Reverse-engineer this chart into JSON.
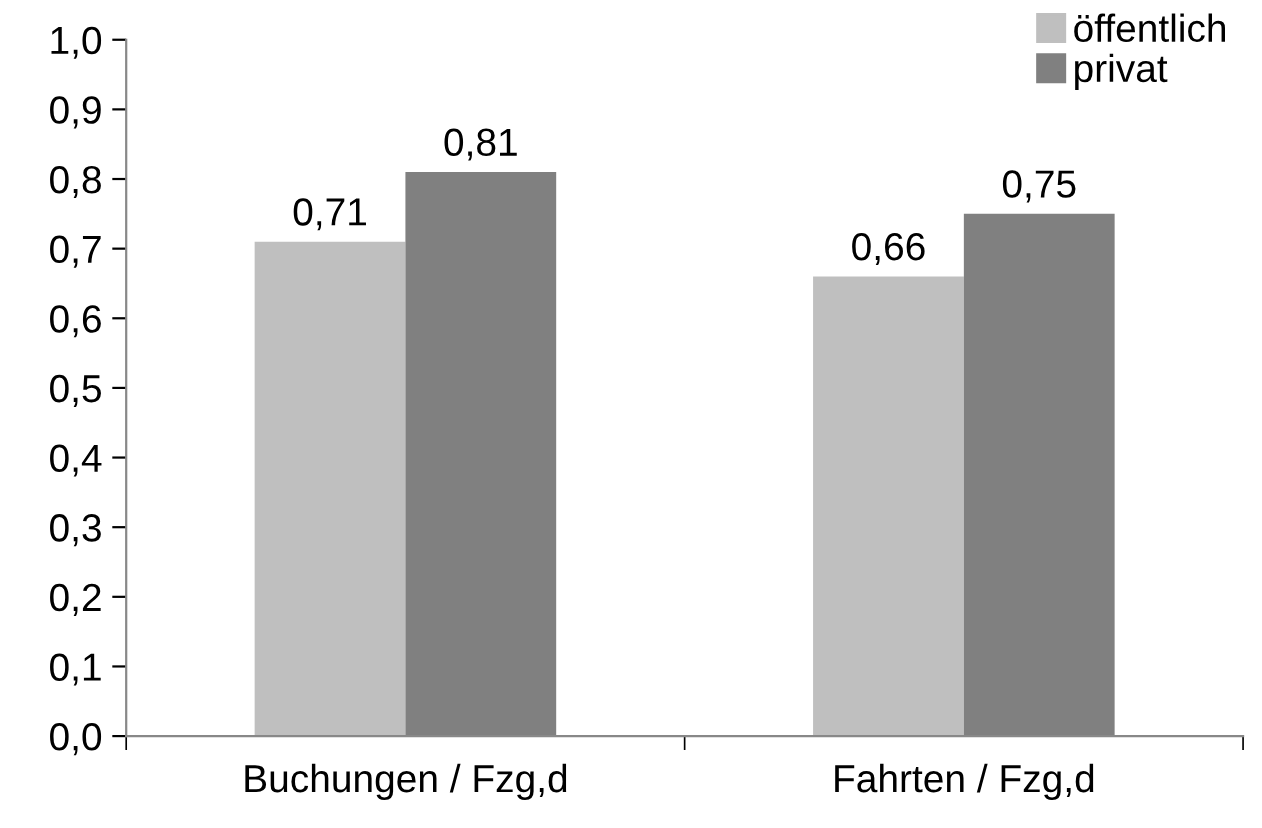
{
  "chart_data": {
    "type": "bar",
    "categories": [
      "Buchungen / Fzg,d",
      "Fahrten / Fzg,d"
    ],
    "series": [
      {
        "name": "öffentlich",
        "color": "#bfbfbf",
        "values": [
          0.71,
          0.66
        ],
        "value_labels": [
          "0,71",
          "0,66"
        ]
      },
      {
        "name": "privat",
        "color": "#808080",
        "values": [
          0.81,
          0.75
        ],
        "value_labels": [
          "0,81",
          "0,75"
        ]
      }
    ],
    "ylim": [
      0,
      1
    ],
    "yticks": [
      {
        "value": 0,
        "label": "0,0"
      },
      {
        "value": 0.1,
        "label": "0,1"
      },
      {
        "value": 0.2,
        "label": "0,2"
      },
      {
        "value": 0.3,
        "label": "0,3"
      },
      {
        "value": 0.4,
        "label": "0,4"
      },
      {
        "value": 0.5,
        "label": "0,5"
      },
      {
        "value": 0.6,
        "label": "0,6"
      },
      {
        "value": 0.7,
        "label": "0,7"
      },
      {
        "value": 0.8,
        "label": "0,8"
      },
      {
        "value": 0.9,
        "label": "0,9"
      },
      {
        "value": 1.0,
        "label": "1,0"
      }
    ],
    "grid": false,
    "legend": "top right"
  }
}
